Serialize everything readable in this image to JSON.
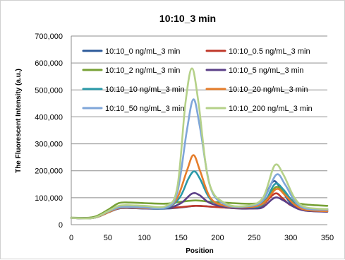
{
  "chart_data": {
    "type": "line",
    "title": "10:10_3 min",
    "xlabel": "Position",
    "ylabel": "The Fluorescent Intensity (a.u.)",
    "xlim": [
      0,
      350
    ],
    "ylim": [
      0,
      700000
    ],
    "xticks": [
      "0",
      "50",
      "100",
      "150",
      "200",
      "250",
      "300",
      "350"
    ],
    "yticks": [
      "0",
      "100,000",
      "200,000",
      "300,000",
      "400,000",
      "500,000",
      "600,000",
      "700,000"
    ],
    "grid": "horizontal",
    "legend_position": "top",
    "series": [
      {
        "name": "10:10_0 ng/mL_3 min",
        "color": "#2E5B9A",
        "points": [
          [
            0,
            25000
          ],
          [
            30,
            25000
          ],
          [
            50,
            45000
          ],
          [
            65,
            60000
          ],
          [
            80,
            62000
          ],
          [
            100,
            60000
          ],
          [
            130,
            60000
          ],
          [
            150,
            64000
          ],
          [
            170,
            70000
          ],
          [
            190,
            67000
          ],
          [
            220,
            62000
          ],
          [
            250,
            62000
          ],
          [
            260,
            75000
          ],
          [
            275,
            158000
          ],
          [
            285,
            140000
          ],
          [
            300,
            80000
          ],
          [
            320,
            60000
          ],
          [
            350,
            58000
          ]
        ]
      },
      {
        "name": "10:10_0.5 ng/mL_3 min",
        "color": "#C0392B",
        "points": [
          [
            0,
            25000
          ],
          [
            30,
            25000
          ],
          [
            50,
            45000
          ],
          [
            65,
            62000
          ],
          [
            80,
            64000
          ],
          [
            100,
            62000
          ],
          [
            130,
            62000
          ],
          [
            150,
            65000
          ],
          [
            170,
            70000
          ],
          [
            190,
            67000
          ],
          [
            220,
            62000
          ],
          [
            250,
            60000
          ],
          [
            260,
            68000
          ],
          [
            278,
            115000
          ],
          [
            288,
            100000
          ],
          [
            300,
            72000
          ],
          [
            320,
            55000
          ],
          [
            350,
            52000
          ]
        ]
      },
      {
        "name": "10:10_2 ng/mL_3 min",
        "color": "#77A136",
        "points": [
          [
            0,
            26000
          ],
          [
            30,
            28000
          ],
          [
            50,
            55000
          ],
          [
            65,
            80000
          ],
          [
            80,
            82000
          ],
          [
            100,
            80000
          ],
          [
            130,
            78000
          ],
          [
            150,
            85000
          ],
          [
            170,
            90000
          ],
          [
            190,
            85000
          ],
          [
            220,
            80000
          ],
          [
            250,
            78000
          ],
          [
            265,
            90000
          ],
          [
            280,
            140000
          ],
          [
            292,
            115000
          ],
          [
            305,
            85000
          ],
          [
            320,
            75000
          ],
          [
            350,
            70000
          ]
        ]
      },
      {
        "name": "10:10_5 ng/mL_3 min",
        "color": "#5B3F87",
        "points": [
          [
            0,
            25000
          ],
          [
            30,
            25000
          ],
          [
            50,
            45000
          ],
          [
            65,
            60000
          ],
          [
            80,
            62000
          ],
          [
            100,
            60000
          ],
          [
            130,
            60000
          ],
          [
            150,
            80000
          ],
          [
            165,
            115000
          ],
          [
            175,
            110000
          ],
          [
            190,
            80000
          ],
          [
            220,
            62000
          ],
          [
            250,
            60000
          ],
          [
            262,
            65000
          ],
          [
            278,
            100000
          ],
          [
            290,
            90000
          ],
          [
            305,
            65000
          ],
          [
            320,
            52000
          ],
          [
            350,
            48000
          ]
        ]
      },
      {
        "name": "10:10_10 ng/mL_3 min",
        "color": "#2A99A8",
        "points": [
          [
            0,
            25000
          ],
          [
            30,
            25000
          ],
          [
            50,
            45000
          ],
          [
            65,
            62000
          ],
          [
            80,
            64000
          ],
          [
            100,
            62000
          ],
          [
            130,
            62000
          ],
          [
            148,
            100000
          ],
          [
            160,
            170000
          ],
          [
            168,
            198000
          ],
          [
            176,
            170000
          ],
          [
            190,
            95000
          ],
          [
            210,
            70000
          ],
          [
            240,
            65000
          ],
          [
            262,
            75000
          ],
          [
            278,
            150000
          ],
          [
            290,
            130000
          ],
          [
            305,
            78000
          ],
          [
            320,
            58000
          ],
          [
            350,
            55000
          ]
        ]
      },
      {
        "name": "10:10_20 ng/mL_3 min",
        "color": "#E57D2B",
        "points": [
          [
            0,
            25000
          ],
          [
            30,
            25000
          ],
          [
            50,
            45000
          ],
          [
            65,
            62000
          ],
          [
            80,
            64000
          ],
          [
            100,
            62000
          ],
          [
            130,
            64000
          ],
          [
            145,
            100000
          ],
          [
            158,
            200000
          ],
          [
            167,
            258000
          ],
          [
            176,
            200000
          ],
          [
            190,
            100000
          ],
          [
            210,
            70000
          ],
          [
            240,
            65000
          ],
          [
            262,
            78000
          ],
          [
            280,
            132000
          ],
          [
            292,
            110000
          ],
          [
            305,
            75000
          ],
          [
            320,
            55000
          ],
          [
            350,
            50000
          ]
        ]
      },
      {
        "name": "10:10_50 ng/mL_3 min",
        "color": "#7FA6D9",
        "points": [
          [
            0,
            25000
          ],
          [
            30,
            25000
          ],
          [
            50,
            48000
          ],
          [
            65,
            64000
          ],
          [
            80,
            66000
          ],
          [
            100,
            64000
          ],
          [
            130,
            64000
          ],
          [
            145,
            120000
          ],
          [
            158,
            350000
          ],
          [
            167,
            465000
          ],
          [
            176,
            360000
          ],
          [
            190,
            140000
          ],
          [
            210,
            75000
          ],
          [
            240,
            68000
          ],
          [
            262,
            90000
          ],
          [
            280,
            185000
          ],
          [
            292,
            150000
          ],
          [
            305,
            90000
          ],
          [
            320,
            60000
          ],
          [
            350,
            55000
          ]
        ]
      },
      {
        "name": "10:10_200 ng/mL_3 min",
        "color": "#B5D189",
        "points": [
          [
            0,
            25000
          ],
          [
            30,
            25000
          ],
          [
            50,
            50000
          ],
          [
            65,
            70000
          ],
          [
            80,
            72000
          ],
          [
            100,
            70000
          ],
          [
            130,
            70000
          ],
          [
            145,
            140000
          ],
          [
            156,
            450000
          ],
          [
            165,
            580000
          ],
          [
            174,
            450000
          ],
          [
            188,
            160000
          ],
          [
            210,
            80000
          ],
          [
            240,
            70000
          ],
          [
            262,
            100000
          ],
          [
            278,
            220000
          ],
          [
            290,
            185000
          ],
          [
            305,
            100000
          ],
          [
            320,
            65000
          ],
          [
            350,
            58000
          ]
        ]
      }
    ]
  }
}
